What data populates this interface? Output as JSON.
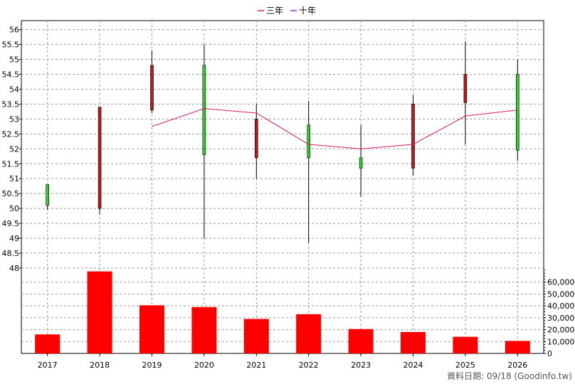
{
  "chart_data": {
    "type": "candlestick",
    "legend": [
      {
        "name": "三年",
        "color": "#d81b60"
      },
      {
        "name": "十年",
        "color": "#7b2fbe"
      }
    ],
    "categories": [
      "2017",
      "2018",
      "2019",
      "2020",
      "2021",
      "2022",
      "2023",
      "2024",
      "2025",
      "2026"
    ],
    "price_axis": {
      "ylim": [
        48,
        56.3
      ],
      "ticks": [
        "48",
        "48.5",
        "49",
        "49.5",
        "50",
        "50.5",
        "51",
        "51.5",
        "52",
        "52.5",
        "53",
        "53.5",
        "54",
        "54.5",
        "55",
        "55.5",
        "56"
      ]
    },
    "candles": [
      {
        "year": "2017",
        "open": 50.1,
        "close": 50.8,
        "high": 50.8,
        "low": 49.95
      },
      {
        "year": "2018",
        "open": 53.4,
        "close": 50.0,
        "high": 53.4,
        "low": 49.8
      },
      {
        "year": "2019",
        "open": 54.8,
        "close": 53.3,
        "high": 55.3,
        "low": 53.2
      },
      {
        "year": "2020",
        "open": 51.8,
        "close": 54.8,
        "high": 55.5,
        "low": 49.0
      },
      {
        "year": "2021",
        "open": 53.0,
        "close": 51.7,
        "high": 53.5,
        "low": 51.0
      },
      {
        "year": "2022",
        "open": 51.7,
        "close": 52.8,
        "high": 53.6,
        "low": 48.85
      },
      {
        "year": "2023",
        "open": 51.35,
        "close": 51.7,
        "high": 52.8,
        "low": 50.4
      },
      {
        "year": "2024",
        "open": 53.5,
        "close": 51.35,
        "high": 53.8,
        "low": 51.1
      },
      {
        "year": "2025",
        "open": 54.5,
        "close": 53.55,
        "high": 55.6,
        "low": 52.15
      },
      {
        "year": "2026",
        "open": 51.95,
        "close": 54.5,
        "high": 55.0,
        "low": 51.6
      }
    ],
    "up_color": "#33cc33",
    "down_color": "#b71c1c",
    "three_year_ma": {
      "x": [
        "2019",
        "2020",
        "2021",
        "2022",
        "2023",
        "2024",
        "2025",
        "2026"
      ],
      "values": [
        52.75,
        53.35,
        53.2,
        52.15,
        52.0,
        52.15,
        53.1,
        53.3
      ]
    },
    "volume": {
      "values": [
        16000,
        69000,
        40500,
        39000,
        29000,
        33000,
        20500,
        18000,
        14000,
        10500
      ],
      "color": "#ff0000",
      "ylim": [
        0,
        70000
      ],
      "ticks": [
        "0",
        "10,000",
        "20,000",
        "30,000",
        "40,000",
        "50,000",
        "60,000"
      ]
    },
    "grid": true
  },
  "footer": "資料日期: 09/18 (Goodinfo.tw)"
}
